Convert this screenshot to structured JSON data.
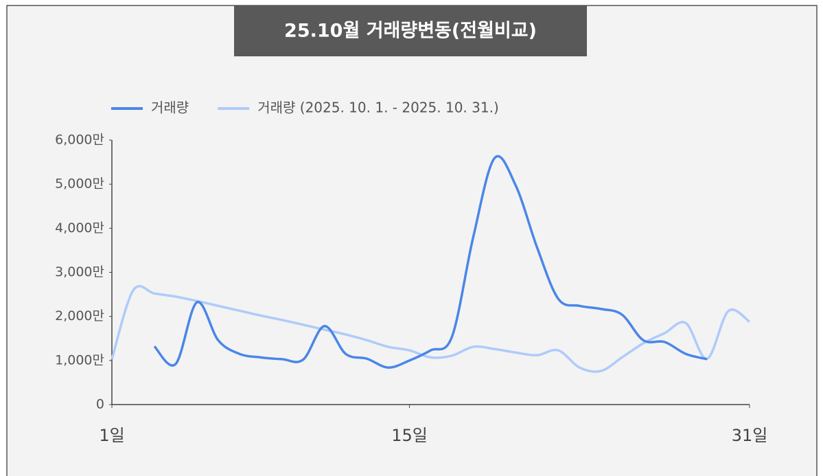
{
  "chart_data": {
    "type": "line",
    "title": "25.10월 거래량변동(전월비교)",
    "x": [
      1,
      2,
      3,
      4,
      5,
      6,
      7,
      8,
      9,
      10,
      11,
      12,
      13,
      14,
      15,
      16,
      17,
      18,
      19,
      20,
      21,
      22,
      23,
      24,
      25,
      26,
      27,
      28,
      29,
      30,
      31
    ],
    "series": [
      {
        "name": "거래량",
        "color": "#4a86e8",
        "values": [
          null,
          null,
          1320,
          920,
          2320,
          1460,
          1150,
          1070,
          1030,
          1020,
          1780,
          1150,
          1040,
          840,
          1000,
          1230,
          1540,
          3800,
          5590,
          4970,
          3570,
          2400,
          2240,
          2170,
          2040,
          1460,
          1420,
          1150,
          1030,
          null,
          null
        ]
      },
      {
        "name": "거래량 (2025. 10. 1. - 2025. 10. 31.)",
        "color": "#aecbfa",
        "values": [
          1030,
          2590,
          2520,
          2450,
          2350,
          2240,
          2130,
          2020,
          1920,
          1810,
          1700,
          1590,
          1460,
          1310,
          1230,
          1070,
          1110,
          1310,
          1260,
          1180,
          1120,
          1230,
          840,
          760,
          1070,
          1390,
          1620,
          1850,
          1040,
          2120,
          1880
        ]
      }
    ],
    "xlim": [
      1,
      31
    ],
    "xticks": [
      {
        "value": 1,
        "label": "1일"
      },
      {
        "value": 15,
        "label": "15일"
      },
      {
        "value": 31,
        "label": "31일"
      }
    ],
    "ylim": [
      0,
      6000
    ],
    "yticks": [
      0,
      {
        "value": 1000,
        "label": "1,000만"
      },
      {
        "value": 2000,
        "label": "2,000만"
      },
      {
        "value": 3000,
        "label": "3,000만"
      },
      {
        "value": 4000,
        "label": "4,000만"
      },
      {
        "value": 5000,
        "label": "5,000만"
      },
      {
        "value": 6000,
        "label": "6,000만"
      }
    ],
    "legend": "top-left"
  }
}
